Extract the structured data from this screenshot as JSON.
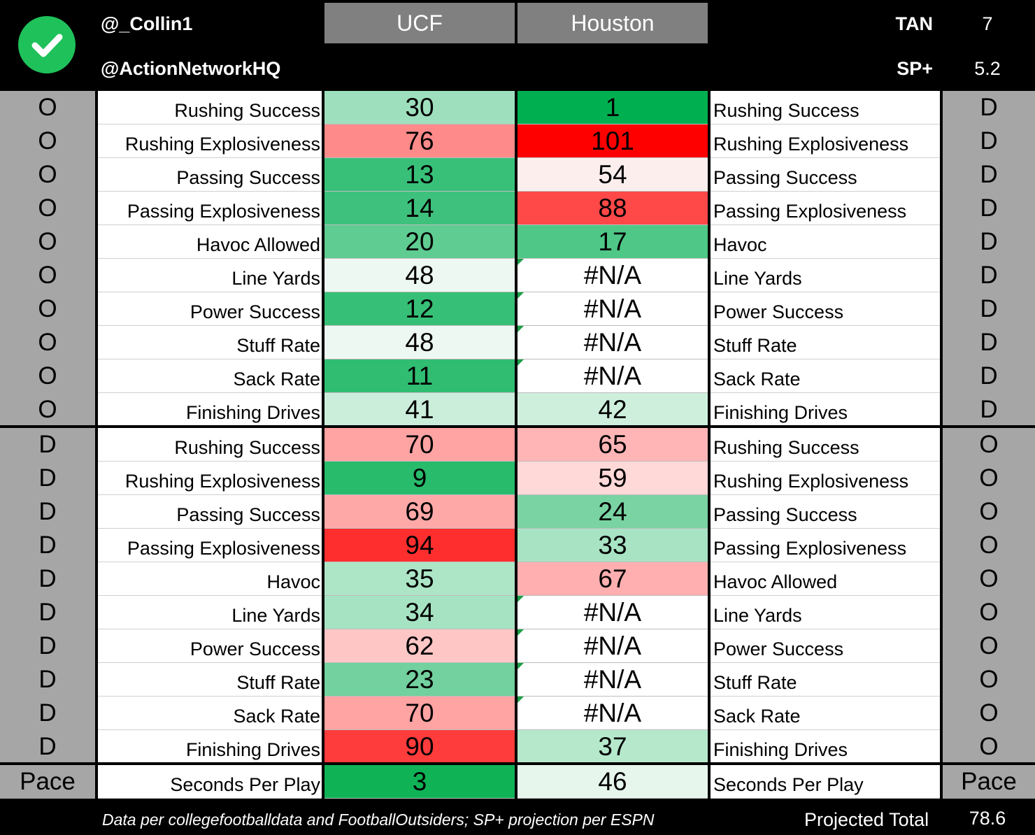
{
  "header": {
    "handle1": "@_Collin1",
    "handle2": "@ActionNetworkHQ",
    "team_a": "UCF",
    "team_b": "Houston",
    "stat1_label": "TAN",
    "stat1_value": "7",
    "stat2_label": "SP+",
    "stat2_value": "5.2",
    "icon": "check-circle-icon",
    "icon_color": "#1fc15a"
  },
  "section1": {
    "left_side": "O",
    "right_side": "D",
    "rows": [
      {
        "left_label": "Rushing Success",
        "a": "30",
        "a_color": "#9ee0bd",
        "b": "1",
        "b_color": "#00b050",
        "right_label": "Rushing Success",
        "b_note": false
      },
      {
        "left_label": "Rushing Explosiveness",
        "a": "76",
        "a_color": "#ff8a8a",
        "b": "101",
        "b_color": "#ff0000",
        "right_label": "Rushing Explosiveness",
        "b_note": false
      },
      {
        "left_label": "Passing Success",
        "a": "13",
        "a_color": "#38c079",
        "b": "54",
        "b_color": "#fdeeee",
        "right_label": "Passing Success",
        "b_note": false
      },
      {
        "left_label": "Passing Explosiveness",
        "a": "14",
        "a_color": "#3ec17c",
        "b": "88",
        "b_color": "#ff4848",
        "right_label": "Passing Explosiveness",
        "b_note": false
      },
      {
        "left_label": "Havoc Allowed",
        "a": "20",
        "a_color": "#5fcc91",
        "b": "17",
        "b_color": "#4fc786",
        "right_label": "Havoc",
        "b_note": false
      },
      {
        "left_label": "Line Yards",
        "a": "48",
        "a_color": "#eef8f2",
        "b": "#N/A",
        "b_color": "#ffffff",
        "right_label": "Line Yards",
        "b_note": true
      },
      {
        "left_label": "Power Success",
        "a": "12",
        "a_color": "#36bf77",
        "b": "#N/A",
        "b_color": "#ffffff",
        "right_label": "Power Success",
        "b_note": true
      },
      {
        "left_label": "Stuff Rate",
        "a": "48",
        "a_color": "#eef8f2",
        "b": "#N/A",
        "b_color": "#ffffff",
        "right_label": "Stuff Rate",
        "b_note": true
      },
      {
        "left_label": "Sack Rate",
        "a": "11",
        "a_color": "#30bd72",
        "b": "#N/A",
        "b_color": "#ffffff",
        "right_label": "Sack Rate",
        "b_note": true
      },
      {
        "left_label": "Finishing Drives",
        "a": "41",
        "a_color": "#cbeedb",
        "b": "42",
        "b_color": "#cfefdd",
        "right_label": "Finishing Drives",
        "b_note": false
      }
    ]
  },
  "section2": {
    "left_side": "D",
    "right_side": "O",
    "rows": [
      {
        "left_label": "Rushing Success",
        "a": "70",
        "a_color": "#ffa3a3",
        "b": "65",
        "b_color": "#ffb5b5",
        "right_label": "Rushing Success",
        "b_note": false
      },
      {
        "left_label": "Rushing Explosiveness",
        "a": "9",
        "a_color": "#28bb6c",
        "b": "59",
        "b_color": "#ffd8d8",
        "right_label": "Rushing Explosiveness",
        "b_note": false
      },
      {
        "left_label": "Passing Success",
        "a": "69",
        "a_color": "#ffa8a8",
        "b": "24",
        "b_color": "#79d3a3",
        "right_label": "Passing Success",
        "b_note": false
      },
      {
        "left_label": "Passing Explosiveness",
        "a": "94",
        "a_color": "#ff2e2e",
        "b": "33",
        "b_color": "#a8e3c3",
        "right_label": "Passing Explosiveness",
        "b_note": false
      },
      {
        "left_label": "Havoc",
        "a": "35",
        "a_color": "#ade5c7",
        "b": "67",
        "b_color": "#ffafaf",
        "right_label": "Havoc Allowed",
        "b_note": false
      },
      {
        "left_label": "Line Yards",
        "a": "34",
        "a_color": "#a6e3c2",
        "b": "#N/A",
        "b_color": "#ffffff",
        "right_label": "Line Yards",
        "b_note": true
      },
      {
        "left_label": "Power Success",
        "a": "62",
        "a_color": "#ffc6c6",
        "b": "#N/A",
        "b_color": "#ffffff",
        "right_label": "Power Success",
        "b_note": true
      },
      {
        "left_label": "Stuff Rate",
        "a": "23",
        "a_color": "#72d19e",
        "b": "#N/A",
        "b_color": "#ffffff",
        "right_label": "Stuff Rate",
        "b_note": true
      },
      {
        "left_label": "Sack Rate",
        "a": "70",
        "a_color": "#ffa3a3",
        "b": "#N/A",
        "b_color": "#ffffff",
        "right_label": "Sack Rate",
        "b_note": true
      },
      {
        "left_label": "Finishing Drives",
        "a": "90",
        "a_color": "#ff3c3c",
        "b": "37",
        "b_color": "#b6e8cc",
        "right_label": "Finishing Drives",
        "b_note": false
      }
    ]
  },
  "pace": {
    "left_side": "Pace",
    "right_side": "Pace",
    "left_label": "Seconds Per Play",
    "a": "3",
    "a_color": "#0fb356",
    "b": "46",
    "b_color": "#e6f6ed",
    "right_label": "Seconds Per Play"
  },
  "footer": {
    "source": "Data per collegefootballdata and FootballOutsiders; SP+ projection per ESPN",
    "projected_total_label": "Projected Total",
    "projected_total_value": "78.6"
  }
}
